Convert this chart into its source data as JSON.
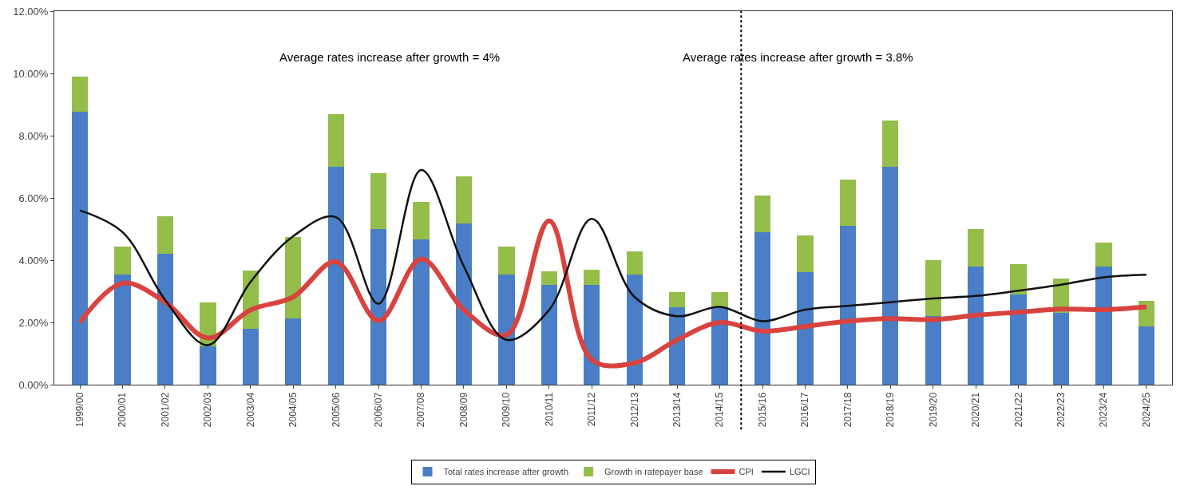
{
  "chart_data": {
    "type": "bar",
    "stacked": true,
    "categories": [
      "1999/00",
      "2000/01",
      "2001/02",
      "2002/03",
      "2003/04",
      "2004/05",
      "2005/06",
      "2006/07",
      "2007/08",
      "2008/09",
      "2009/10",
      "2010/11",
      "2011/12",
      "2012/13",
      "2013/14",
      "2014/15",
      "2015/16",
      "2016/17",
      "2017/18",
      "2018/19",
      "2019/20",
      "2020/21",
      "2021/22",
      "2022/23",
      "2023/24",
      "2024/25"
    ],
    "series": [
      {
        "name": "Total rates increase after growth",
        "color": "#4a7ec6",
        "values": [
          8.78,
          3.55,
          4.2,
          1.24,
          1.8,
          2.12,
          7.0,
          5.0,
          4.67,
          5.18,
          3.55,
          3.2,
          3.2,
          3.55,
          2.5,
          2.48,
          4.9,
          3.62,
          5.1,
          7.0,
          2.2,
          3.8,
          2.9,
          2.3,
          3.8,
          1.87
        ]
      },
      {
        "name": "Growth in ratepayer base",
        "color": "#94bd4a",
        "values": [
          1.12,
          0.88,
          1.2,
          1.41,
          1.87,
          2.62,
          1.7,
          1.8,
          1.2,
          1.5,
          0.88,
          0.45,
          0.5,
          0.73,
          0.47,
          0.5,
          1.18,
          1.18,
          1.5,
          1.5,
          1.8,
          1.2,
          0.97,
          1.1,
          0.77,
          0.83
        ]
      },
      {
        "name": "CPI",
        "type": "line",
        "color": "#d9433f",
        "values": [
          2.0,
          3.26,
          2.65,
          1.5,
          2.4,
          2.82,
          3.95,
          2.05,
          4.04,
          2.4,
          1.6,
          5.26,
          0.8,
          0.7,
          1.44,
          2.0,
          1.72,
          1.87,
          2.04,
          2.12,
          2.09,
          2.23,
          2.33,
          2.43,
          2.41,
          2.5
        ]
      },
      {
        "name": "LGCI",
        "type": "line",
        "color": "#111111",
        "values": [
          5.6,
          4.9,
          2.72,
          1.27,
          3.3,
          4.77,
          5.38,
          2.6,
          6.9,
          3.8,
          1.44,
          2.4,
          5.33,
          2.82,
          2.2,
          2.5,
          2.04,
          2.41,
          2.53,
          2.65,
          2.77,
          2.85,
          3.02,
          3.21,
          3.45,
          3.53
        ]
      }
    ],
    "ylim": [
      0,
      12
    ],
    "yticks": [
      {
        "value": 0,
        "label": "0.00%"
      },
      {
        "value": 2,
        "label": "2.00%"
      },
      {
        "value": 4,
        "label": "4.00%"
      },
      {
        "value": 6,
        "label": "6.00%"
      },
      {
        "value": 8,
        "label": "8.00%"
      },
      {
        "value": 10,
        "label": "10.00%"
      },
      {
        "value": 12,
        "label": "12.00%"
      }
    ],
    "grid": false,
    "legend": "bottom",
    "marker": "none",
    "line_style": "solid",
    "annotations": [
      "Average rates increase after growth = 4%",
      "Average rates increase after growth = 3.8%"
    ]
  }
}
